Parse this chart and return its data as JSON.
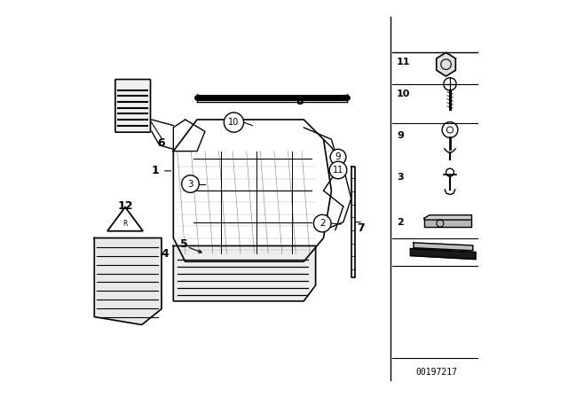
{
  "bg_color": "#ffffff",
  "fig_width": 6.4,
  "fig_height": 4.48,
  "dpi": 100,
  "part_code": "00197217",
  "line_color": "#000000",
  "text_color": "#000000"
}
